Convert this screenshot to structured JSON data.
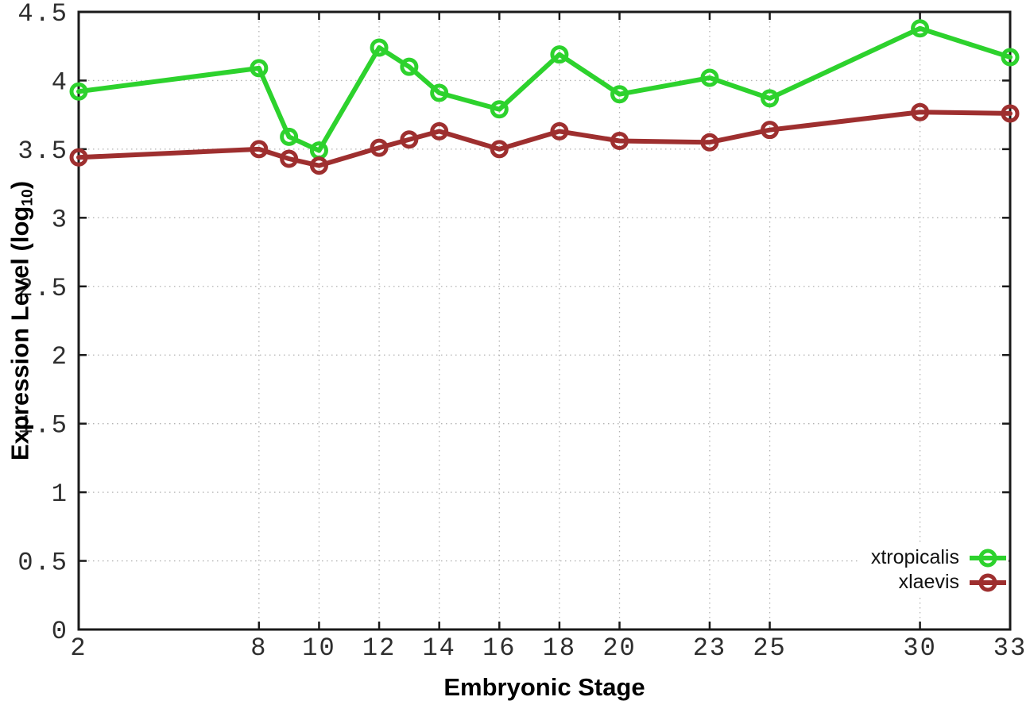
{
  "chart_data": {
    "type": "line",
    "title": "",
    "xlabel": "Embryonic Stage",
    "ylabel": "Expression Level (log10)",
    "ylabel_parts": {
      "prefix": "Expression Level (log",
      "sub": "10",
      "suffix": ")"
    },
    "x": [
      2,
      8,
      9,
      10,
      12,
      13,
      14,
      16,
      18,
      20,
      23,
      25,
      30,
      33
    ],
    "x_ticks": [
      2,
      8,
      10,
      12,
      14,
      16,
      18,
      20,
      23,
      25,
      30,
      33
    ],
    "y_ticks": [
      0,
      0.5,
      1,
      1.5,
      2,
      2.5,
      3,
      3.5,
      4,
      4.5
    ],
    "xlim": [
      2,
      33
    ],
    "ylim": [
      0,
      4.5
    ],
    "grid": true,
    "legend_position": "bottom-right",
    "marker": "open-circle",
    "series": [
      {
        "name": "xtropicalis",
        "color": "#2dd22d",
        "values": [
          3.92,
          4.09,
          3.59,
          3.49,
          4.24,
          4.1,
          3.91,
          3.79,
          4.19,
          3.9,
          4.02,
          3.87,
          4.38,
          4.17
        ]
      },
      {
        "name": "xlaevis",
        "color": "#9e2f2f",
        "values": [
          3.44,
          3.5,
          3.43,
          3.38,
          3.51,
          3.57,
          3.63,
          3.5,
          3.63,
          3.56,
          3.55,
          3.64,
          3.77,
          3.76
        ]
      }
    ],
    "colors": {
      "grid": "#b3b3b3",
      "axis": "#1a1a1a",
      "tick_label": "#2e2e2e"
    }
  }
}
